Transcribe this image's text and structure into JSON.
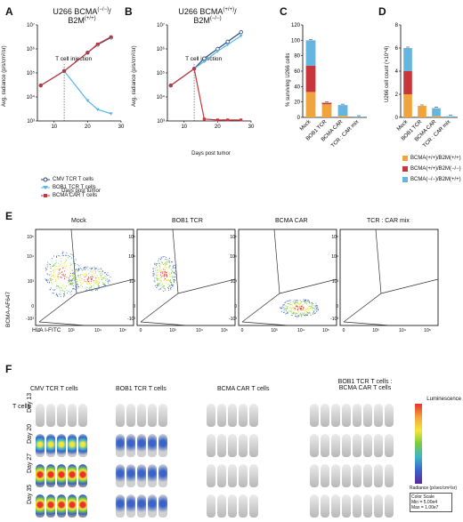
{
  "panel_letters": {
    "a": "A",
    "b": "B",
    "c": "C",
    "d": "D",
    "e": "E",
    "f": "F"
  },
  "panel_a": {
    "title_line1": "U266 BCMA",
    "title_sup1": "(−/−)",
    "title_line2": "B2M",
    "title_sup2": "(+/+)",
    "annotation": "T cell injection",
    "ylabel": "Avg. radiance (p/s/cm²/sr)",
    "xlabel": "Days post tumor",
    "legend": [
      "CMV TCR T cells",
      "BOB1 TCR T cells",
      "BCMA CAR T cells"
    ]
  },
  "panel_b": {
    "title_line1": "U266 BCMA",
    "title_sup1": "(+/+)",
    "title_line2": "B2M",
    "title_sup2": "(−/−)",
    "annotation": "T cell injection",
    "ylabel": "Avg. radiance (p/s/cm²/sr)",
    "xlabel": "Days post tumor"
  },
  "panel_c": {
    "ylabel": "% surviving U266 cells"
  },
  "panel_d": {
    "ylabel": "U266 cell count (×10^4)",
    "legend": [
      "BCMA(+/+)/B2M(+/+)",
      "BCMA(+/+)/B2M(−/−)",
      "BCMA(−/−)/B2M(+/+)"
    ]
  },
  "panel_e": {
    "titles": [
      "Mock",
      "BOB1 TCR",
      "BCMA CAR",
      "TCR : CAR mix"
    ],
    "ylabel": "BCMA-AF647",
    "xlabel": "HLA I-FITC",
    "ticks": [
      "10⁵",
      "10⁴",
      "10³",
      "0",
      "-10³"
    ],
    "xticks": [
      "0",
      "10³",
      "10⁴",
      "10⁵"
    ]
  },
  "panel_f": {
    "groups": [
      "CMV TCR T cells",
      "BOB1 TCR T cells",
      "BCMA CAR T cells",
      "BOB1 TCR T cells :",
      "BCMA CAR T cells"
    ],
    "side_label": "T cells",
    "rows": [
      "Day 13",
      "Day 20",
      "Day 27",
      "Day 35"
    ],
    "scale_title": "Luminescence",
    "scale_unit": "Radiance (p/sec/cm²/sr)",
    "color_scale": "Color Scale",
    "scale_min": "Min = 5.00e4",
    "scale_max": "Max = 1.00e7"
  },
  "colors": {
    "cmv": "#2b4a7a",
    "bob1": "#5ab4e5",
    "car": "#c8353a",
    "orange": "#f0a53c",
    "red": "#c8353a",
    "blue": "#64b5e0"
  },
  "chart_data": [
    {
      "type": "line",
      "title": "U266 BCMA(−/−)/B2M(+/+)",
      "xlabel": "Days post tumor",
      "ylabel": "Avg. radiance (p/s/cm²/sr)",
      "yscale": "log",
      "ylim": [
        1000,
        10000000
      ],
      "xlim": [
        5,
        30
      ],
      "x": [
        6,
        13,
        20,
        23,
        27
      ],
      "series": [
        {
          "name": "CMV TCR T cells",
          "values": [
            30000,
            120000,
            700000,
            1500000,
            3000000
          ]
        },
        {
          "name": "BOB1 TCR T cells",
          "values": [
            30000,
            120000,
            7000,
            3000,
            2000
          ]
        },
        {
          "name": "BCMA CAR T cells",
          "values": [
            30000,
            120000,
            700000,
            1600000,
            3200000
          ]
        }
      ]
    },
    {
      "type": "line",
      "title": "U266 BCMA(+/+)/B2M(−/−)",
      "xlabel": "Days post tumor",
      "ylabel": "Avg. radiance (p/s/cm²/sr)",
      "yscale": "log",
      "ylim": [
        1000,
        10000000
      ],
      "xlim": [
        5,
        30
      ],
      "x": [
        6,
        13,
        16,
        20,
        23,
        27
      ],
      "series": [
        {
          "name": "CMV TCR T cells",
          "values": [
            30000,
            150000,
            400000,
            1000000,
            2000000,
            5000000
          ]
        },
        {
          "name": "BOB1 TCR T cells",
          "values": [
            30000,
            150000,
            300000,
            800000,
            1500000,
            3500000
          ]
        },
        {
          "name": "BCMA CAR T cells",
          "values": [
            30000,
            150000,
            1200,
            1100,
            1100,
            1100
          ]
        }
      ]
    },
    {
      "type": "bar",
      "ylabel": "% surviving U266 cells",
      "categories": [
        "Mock",
        "BOB1 TCR",
        "BCMA CAR",
        "TCR : CAR mix"
      ],
      "ylim": [
        0,
        120
      ],
      "series": [
        {
          "name": "BCMA(+/+)/B2M(+/+)",
          "values": [
            33,
            17,
            2,
            0
          ]
        },
        {
          "name": "BCMA(+/+)/B2M(−/−)",
          "values": [
            34,
            2,
            0,
            0
          ]
        },
        {
          "name": "BCMA(−/−)/B2M(+/+)",
          "values": [
            33,
            0,
            14,
            1
          ]
        }
      ]
    },
    {
      "type": "bar",
      "ylabel": "U266 cell count (×10^4)",
      "categories": [
        "Mock",
        "BOB1 TCR",
        "BCMA CAR",
        "TCR : CAR mix"
      ],
      "ylim": [
        0,
        8
      ],
      "series": [
        {
          "name": "BCMA(+/+)/B2M(+/+)",
          "values": [
            2,
            1,
            0.1,
            0
          ]
        },
        {
          "name": "BCMA(+/+)/B2M(−/−)",
          "values": [
            2,
            0,
            0,
            0
          ]
        },
        {
          "name": "BCMA(−/−)/B2M(+/+)",
          "values": [
            2,
            0,
            0.7,
            0.1
          ]
        }
      ]
    }
  ]
}
